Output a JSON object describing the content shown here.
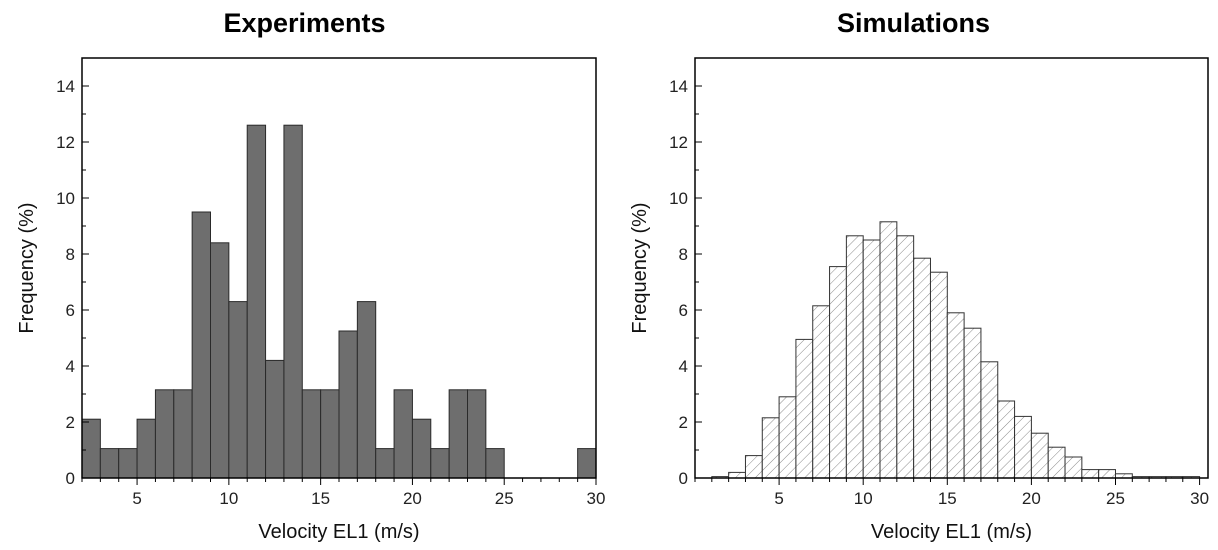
{
  "chart_data": [
    {
      "type": "bar",
      "title": "Experiments",
      "xlabel": "Velocity EL1 (m/s)",
      "ylabel": "Frequency (%)",
      "xlim": [
        2,
        30
      ],
      "ylim": [
        0,
        15
      ],
      "xticks": [
        5,
        10,
        15,
        20,
        25,
        30
      ],
      "yticks": [
        0,
        2,
        4,
        6,
        8,
        10,
        12,
        14
      ],
      "bin_width": 1,
      "bar_fill": "#6e6e6e",
      "bar_pattern": "solid",
      "bins": [
        {
          "x0": 2,
          "x1": 3,
          "value": 2.1
        },
        {
          "x0": 3,
          "x1": 4,
          "value": 1.05
        },
        {
          "x0": 4,
          "x1": 5,
          "value": 1.05
        },
        {
          "x0": 5,
          "x1": 6,
          "value": 2.1
        },
        {
          "x0": 6,
          "x1": 7,
          "value": 3.15
        },
        {
          "x0": 7,
          "x1": 8,
          "value": 3.15
        },
        {
          "x0": 8,
          "x1": 9,
          "value": 9.5
        },
        {
          "x0": 9,
          "x1": 10,
          "value": 8.4
        },
        {
          "x0": 10,
          "x1": 11,
          "value": 6.3
        },
        {
          "x0": 11,
          "x1": 12,
          "value": 12.6
        },
        {
          "x0": 12,
          "x1": 13,
          "value": 4.2
        },
        {
          "x0": 13,
          "x1": 14,
          "value": 12.6
        },
        {
          "x0": 14,
          "x1": 15,
          "value": 3.15
        },
        {
          "x0": 15,
          "x1": 16,
          "value": 3.15
        },
        {
          "x0": 16,
          "x1": 17,
          "value": 5.25
        },
        {
          "x0": 17,
          "x1": 18,
          "value": 6.3
        },
        {
          "x0": 18,
          "x1": 19,
          "value": 1.05
        },
        {
          "x0": 19,
          "x1": 20,
          "value": 3.15
        },
        {
          "x0": 20,
          "x1": 21,
          "value": 2.1
        },
        {
          "x0": 21,
          "x1": 22,
          "value": 1.05
        },
        {
          "x0": 22,
          "x1": 23,
          "value": 3.15
        },
        {
          "x0": 23,
          "x1": 24,
          "value": 3.15
        },
        {
          "x0": 24,
          "x1": 25,
          "value": 1.05
        },
        {
          "x0": 29,
          "x1": 30,
          "value": 1.05
        }
      ]
    },
    {
      "type": "bar",
      "title": "Simulations",
      "xlabel": "Velocity EL1 (m/s)",
      "ylabel": "Frequency (%)",
      "xlim": [
        0,
        30.5
      ],
      "ylim": [
        0,
        15
      ],
      "xticks": [
        5,
        10,
        15,
        20,
        25,
        30
      ],
      "yticks": [
        0,
        2,
        4,
        6,
        8,
        10,
        12,
        14
      ],
      "bin_width": 1,
      "bar_fill": "#ffffff",
      "bar_pattern": "diagonal-hatch",
      "bins": [
        {
          "x0": 1,
          "x1": 2,
          "value": 0.05
        },
        {
          "x0": 2,
          "x1": 3,
          "value": 0.2
        },
        {
          "x0": 3,
          "x1": 4,
          "value": 0.8
        },
        {
          "x0": 4,
          "x1": 5,
          "value": 2.15
        },
        {
          "x0": 5,
          "x1": 6,
          "value": 2.9
        },
        {
          "x0": 6,
          "x1": 7,
          "value": 4.95
        },
        {
          "x0": 7,
          "x1": 8,
          "value": 6.15
        },
        {
          "x0": 8,
          "x1": 9,
          "value": 7.55
        },
        {
          "x0": 9,
          "x1": 10,
          "value": 8.65
        },
        {
          "x0": 10,
          "x1": 11,
          "value": 8.5
        },
        {
          "x0": 11,
          "x1": 12,
          "value": 9.15
        },
        {
          "x0": 12,
          "x1": 13,
          "value": 8.65
        },
        {
          "x0": 13,
          "x1": 14,
          "value": 7.85
        },
        {
          "x0": 14,
          "x1": 15,
          "value": 7.35
        },
        {
          "x0": 15,
          "x1": 16,
          "value": 5.9
        },
        {
          "x0": 16,
          "x1": 17,
          "value": 5.35
        },
        {
          "x0": 17,
          "x1": 18,
          "value": 4.15
        },
        {
          "x0": 18,
          "x1": 19,
          "value": 2.75
        },
        {
          "x0": 19,
          "x1": 20,
          "value": 2.2
        },
        {
          "x0": 20,
          "x1": 21,
          "value": 1.6
        },
        {
          "x0": 21,
          "x1": 22,
          "value": 1.1
        },
        {
          "x0": 22,
          "x1": 23,
          "value": 0.75
        },
        {
          "x0": 23,
          "x1": 24,
          "value": 0.3
        },
        {
          "x0": 24,
          "x1": 25,
          "value": 0.3
        },
        {
          "x0": 25,
          "x1": 26,
          "value": 0.15
        },
        {
          "x0": 26,
          "x1": 27,
          "value": 0.05
        },
        {
          "x0": 27,
          "x1": 28,
          "value": 0.05
        },
        {
          "x0": 28,
          "x1": 29,
          "value": 0.05
        },
        {
          "x0": 29,
          "x1": 30,
          "value": 0.05
        }
      ]
    }
  ]
}
